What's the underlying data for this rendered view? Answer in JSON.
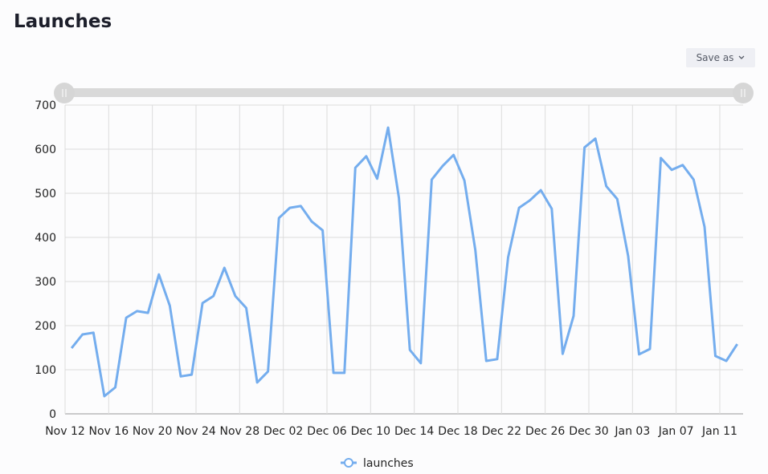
{
  "ui": {
    "save_button": "Save as"
  },
  "chart_data": {
    "type": "line",
    "title": "Launches",
    "categories": [
      "Nov 12",
      null,
      null,
      null,
      "Nov 16",
      null,
      null,
      null,
      "Nov 20",
      null,
      null,
      null,
      "Nov 24",
      null,
      null,
      null,
      "Nov 28",
      null,
      null,
      null,
      "Dec 02",
      null,
      null,
      null,
      "Dec 06",
      null,
      null,
      null,
      "Dec 10",
      null,
      null,
      null,
      "Dec 14",
      null,
      null,
      null,
      "Dec 18",
      null,
      null,
      null,
      "Dec 22",
      null,
      null,
      null,
      "Dec 26",
      null,
      null,
      null,
      "Dec 30",
      null,
      null,
      null,
      "Jan 03",
      null,
      null,
      null,
      "Jan 07",
      null,
      null,
      null,
      "Jan 11",
      null
    ],
    "series": [
      {
        "name": "launches",
        "color": "#74adee",
        "values": [
          149,
          180,
          184,
          40,
          60,
          218,
          233,
          229,
          316,
          245,
          85,
          89,
          251,
          267,
          331,
          267,
          240,
          71,
          96,
          444,
          467,
          471,
          436,
          416,
          93,
          93,
          558,
          584,
          533,
          649,
          489,
          145,
          115,
          531,
          562,
          587,
          529,
          371,
          120,
          124,
          355,
          467,
          484,
          507,
          465,
          136,
          222,
          604,
          624,
          516,
          487,
          358,
          135,
          147,
          580,
          553,
          564,
          531,
          424,
          131,
          120,
          158
        ]
      }
    ],
    "ylim": [
      0,
      700
    ],
    "yticks": [
      0,
      100,
      200,
      300,
      400,
      500,
      600,
      700
    ],
    "grid": true,
    "legend": "bottom"
  }
}
